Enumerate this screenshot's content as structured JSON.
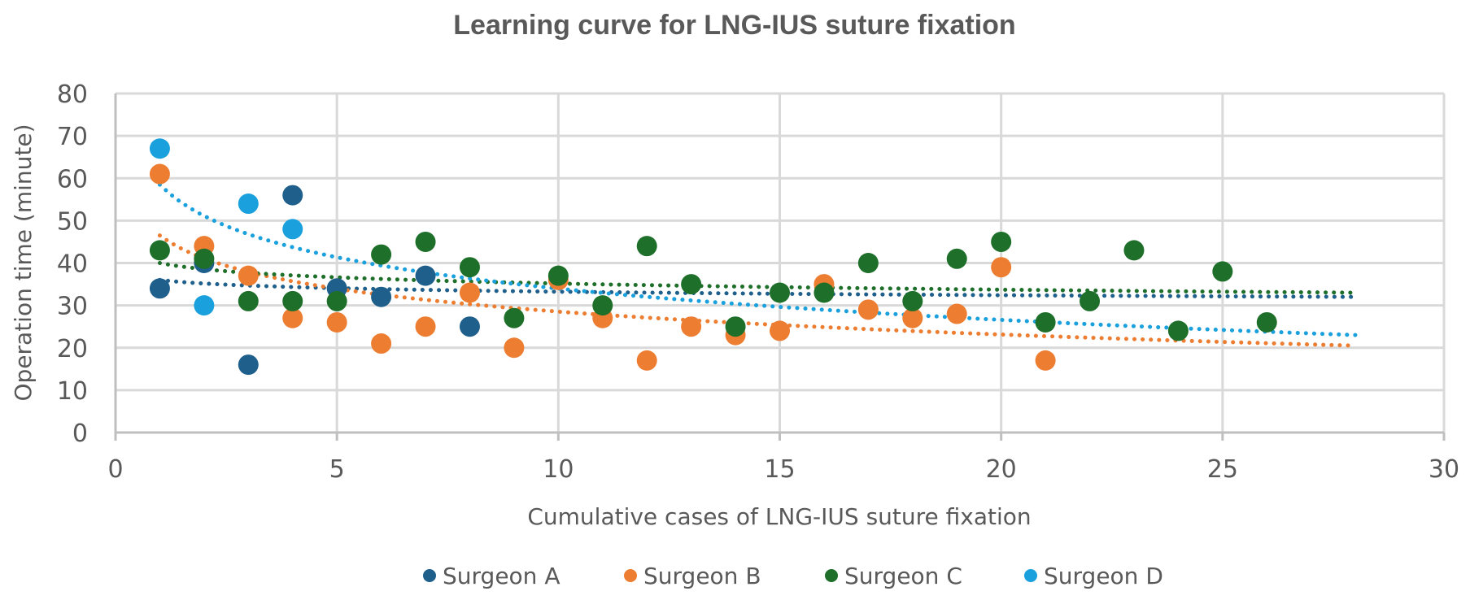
{
  "chart_data": {
    "type": "scatter",
    "title": "Learning curve for LNG-IUS suture fixation",
    "xlabel": "Cumulative cases of LNG-IUS suture fixation",
    "ylabel": "Operation time (minute)",
    "xlim": [
      0,
      30
    ],
    "ylim": [
      0,
      80
    ],
    "xticks": [
      0,
      5,
      10,
      15,
      20,
      25,
      30
    ],
    "yticks": [
      0,
      10,
      20,
      30,
      40,
      50,
      60,
      70,
      80
    ],
    "grid": true,
    "legend_position": "bottom",
    "trendline": {
      "type": "logarithmic",
      "style": "dotted",
      "x_range": [
        1,
        28
      ]
    },
    "series": [
      {
        "name": "Surgeon A",
        "color": "#1f5f8b",
        "x": [
          1,
          2,
          3,
          4,
          5,
          6,
          7,
          8
        ],
        "y": [
          34,
          40,
          16,
          56,
          34,
          32,
          37,
          25
        ],
        "trend_endpoints": [
          36,
          32
        ]
      },
      {
        "name": "Surgeon B",
        "color": "#ed7d31",
        "x": [
          1,
          2,
          3,
          4,
          5,
          6,
          7,
          8,
          9,
          10,
          11,
          12,
          13,
          14,
          15,
          16,
          17,
          18,
          19,
          20,
          21
        ],
        "y": [
          61,
          44,
          37,
          27,
          26,
          21,
          25,
          33,
          20,
          36,
          27,
          17,
          25,
          23,
          24,
          35,
          29,
          27,
          28,
          39,
          17
        ],
        "trend_endpoints": [
          46.5,
          20.5
        ]
      },
      {
        "name": "Surgeon C",
        "color": "#1e6f2a",
        "x": [
          1,
          2,
          3,
          4,
          5,
          6,
          7,
          8,
          9,
          10,
          11,
          12,
          13,
          14,
          15,
          16,
          17,
          18,
          19,
          20,
          21,
          22,
          23,
          24,
          25,
          26
        ],
        "y": [
          43,
          41,
          31,
          31,
          31,
          42,
          45,
          39,
          27,
          37,
          30,
          44,
          35,
          25,
          33,
          33,
          40,
          31,
          41,
          45,
          26,
          31,
          43,
          24,
          38,
          26
        ],
        "trend_endpoints": [
          40,
          33
        ]
      },
      {
        "name": "Surgeon D",
        "color": "#1aa0dc",
        "x": [
          1,
          2,
          3,
          4
        ],
        "y": [
          67,
          30,
          54,
          48
        ],
        "trend_endpoints": [
          58.5,
          23
        ]
      }
    ]
  }
}
